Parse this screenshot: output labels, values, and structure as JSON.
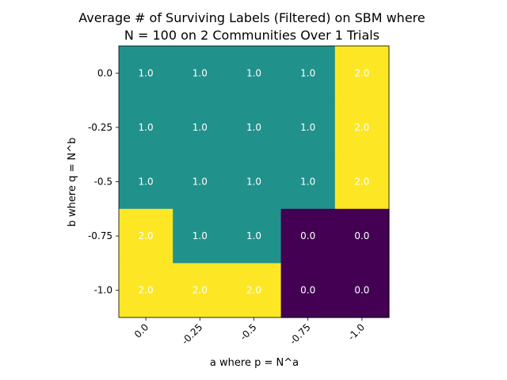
{
  "chart_data": {
    "type": "heatmap",
    "title": [
      "Average # of Surviving Labels (Filtered) on SBM where",
      "N = 100 on 2 Communities Over 1 Trials"
    ],
    "xlabel": "a where p = N^a",
    "ylabel": "b where q = N^b",
    "x_ticks": [
      "0.0",
      "-0.25",
      "-0.5",
      "-0.75",
      "-1.0"
    ],
    "y_ticks": [
      "0.0",
      "-0.25",
      "-0.5",
      "-0.75",
      "-1.0"
    ],
    "values": [
      [
        1.0,
        1.0,
        1.0,
        1.0,
        2.0
      ],
      [
        1.0,
        1.0,
        1.0,
        1.0,
        2.0
      ],
      [
        1.0,
        1.0,
        1.0,
        1.0,
        2.0
      ],
      [
        2.0,
        1.0,
        1.0,
        0.0,
        0.0
      ],
      [
        2.0,
        2.0,
        2.0,
        0.0,
        0.0
      ]
    ],
    "value_range": [
      0.0,
      2.0
    ],
    "colormap": "viridis",
    "colors": {
      "0.0": "#440154",
      "1.0": "#21918c",
      "2.0": "#fde725"
    },
    "grid": false,
    "legend": "none"
  }
}
